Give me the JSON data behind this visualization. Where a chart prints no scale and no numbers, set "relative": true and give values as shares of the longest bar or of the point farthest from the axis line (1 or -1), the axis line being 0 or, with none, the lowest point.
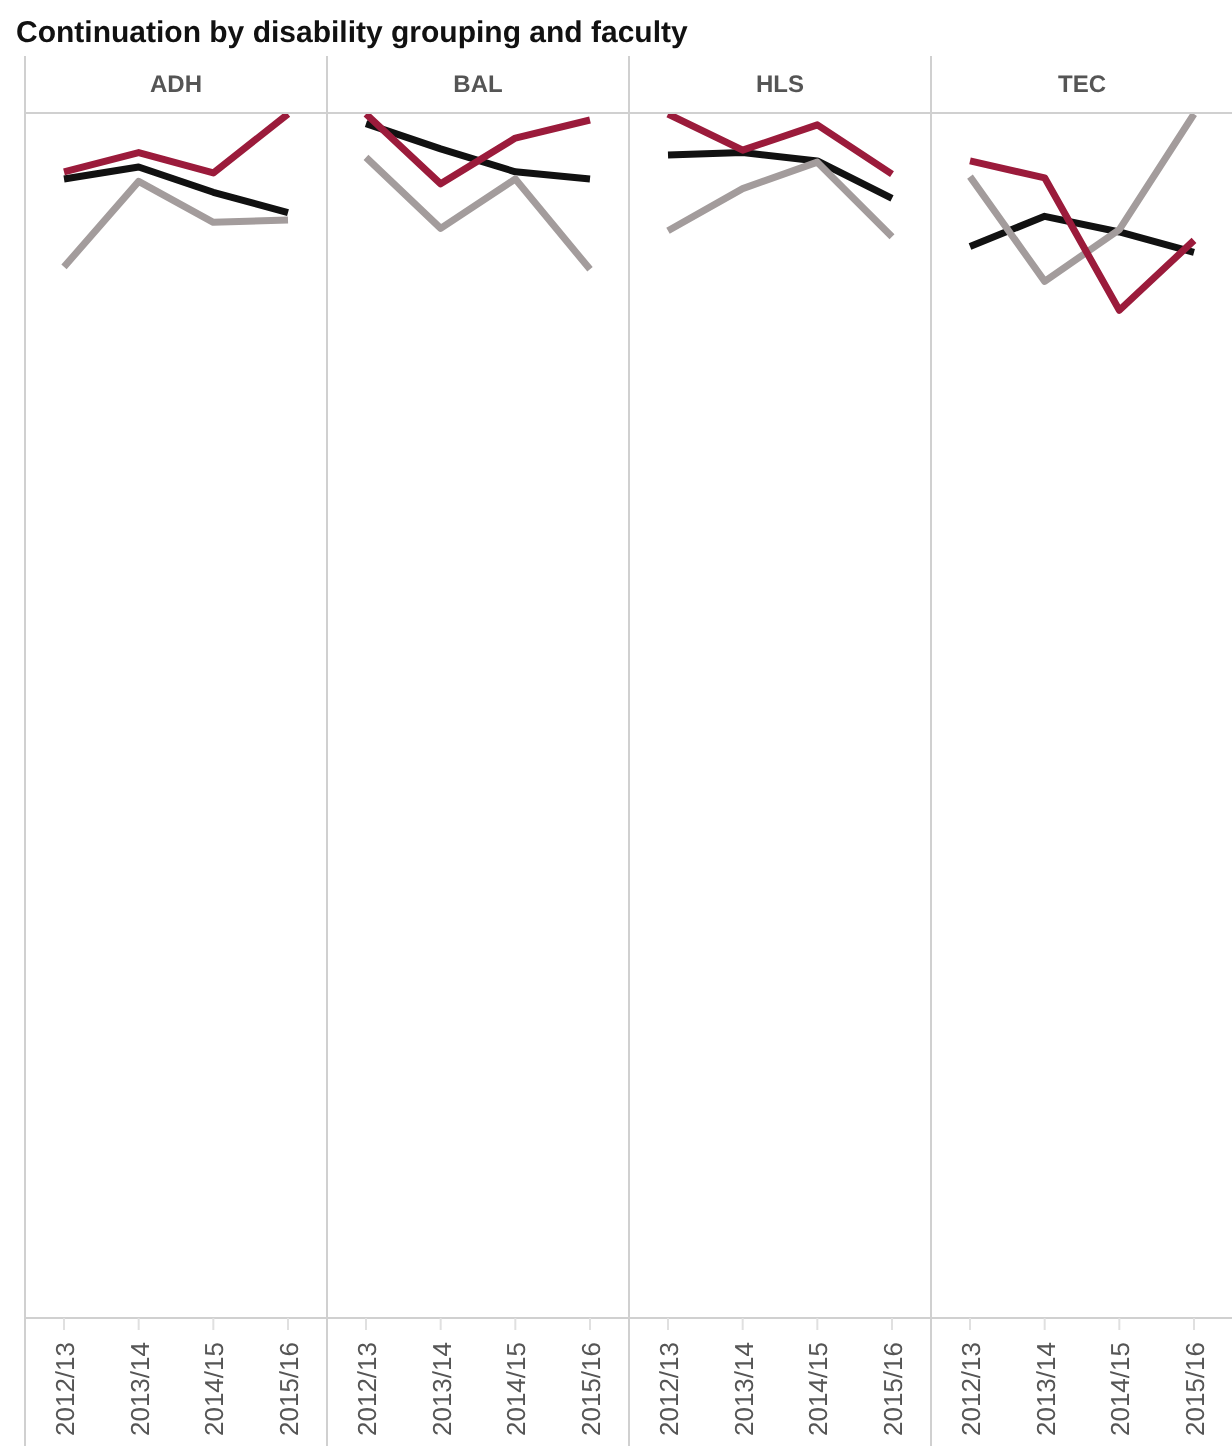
{
  "chart_data": [
    {
      "type": "line",
      "title": "ADH",
      "annotations": [
        "Continuation by disability grouping and faculty"
      ],
      "relative": true,
      "categories": [
        "2012/13",
        "2013/14",
        "2014/15",
        "2015/16"
      ],
      "series": [
        {
          "color": "#111111",
          "values": [
            0.946,
            0.956,
            0.935,
            0.918
          ]
        },
        {
          "color": "#a39c9c",
          "values": [
            0.873,
            0.944,
            0.91,
            0.912
          ]
        },
        {
          "color": "#9b1b3b",
          "values": [
            0.952,
            0.968,
            0.951,
            1
          ]
        }
      ]
    },
    {
      "type": "line",
      "title": "BAL",
      "relative": true,
      "categories": [
        "2012/13",
        "2013/14",
        "2014/15",
        "2015/16"
      ],
      "series": [
        {
          "color": "#111111",
          "values": [
            0.992,
            0.971,
            0.952,
            0.946
          ]
        },
        {
          "color": "#a39c9c",
          "values": [
            0.964,
            0.905,
            0.946,
            0.871
          ]
        },
        {
          "color": "#9b1b3b",
          "values": [
            1,
            0.942,
            0.98,
            0.995
          ]
        }
      ]
    },
    {
      "type": "line",
      "title": "HLS",
      "relative": true,
      "categories": [
        "2012/13",
        "2013/14",
        "2014/15",
        "2015/16"
      ],
      "series": [
        {
          "color": "#111111",
          "values": [
            0.966,
            0.968,
            0.961,
            0.93
          ]
        },
        {
          "color": "#a39c9c",
          "values": [
            0.903,
            0.938,
            0.96,
            0.898
          ]
        },
        {
          "color": "#9b1b3b",
          "values": [
            1,
            0.97,
            0.991,
            0.95
          ]
        }
      ]
    },
    {
      "type": "line",
      "title": "TEC",
      "relative": true,
      "categories": [
        "2012/13",
        "2013/14",
        "2014/15",
        "2015/16"
      ],
      "series": [
        {
          "color": "#111111",
          "values": [
            0.89,
            0.915,
            0.902,
            0.885
          ]
        },
        {
          "color": "#a39c9c",
          "values": [
            0.948,
            0.861,
            0.904,
            1
          ]
        },
        {
          "color": "#9b1b3b",
          "values": [
            0.961,
            0.947,
            0.837,
            0.895
          ]
        }
      ]
    }
  ]
}
